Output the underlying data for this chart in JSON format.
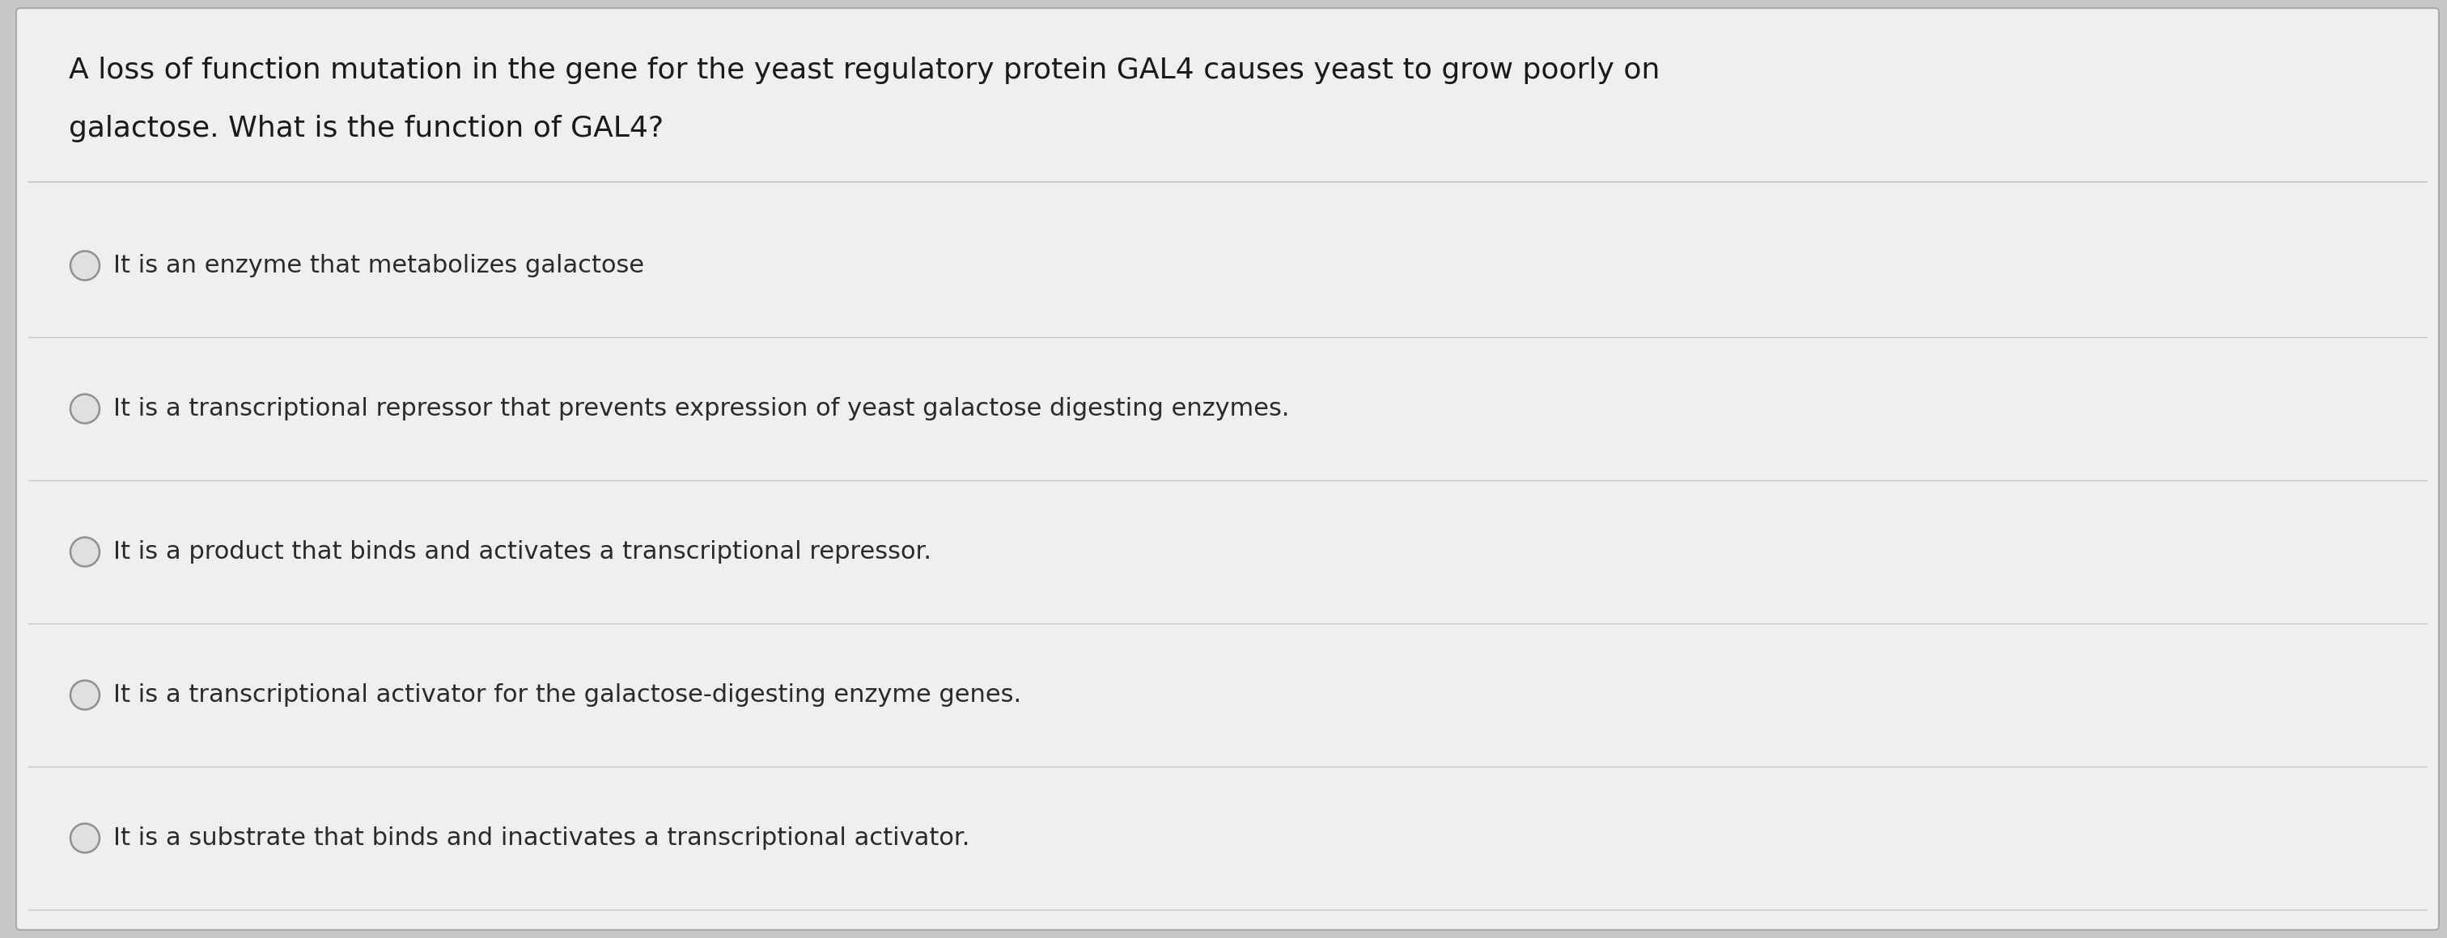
{
  "background_color": "#c8c8c8",
  "card_color": "#f0efee",
  "question_line1": "A loss of function mutation in the gene for the yeast regulatory protein GAL4 causes yeast to grow poorly on",
  "question_line2": "galactose. What is the function of GAL4?",
  "options": [
    "It is an enzyme that metabolizes galactose",
    "It is a transcriptional repressor that prevents expression of yeast galactose digesting enzymes.",
    "It is a product that binds and activates a transcriptional repressor.",
    "It is a transcriptional activator for the galactose-digesting enzyme genes.",
    "It is a substrate that binds and inactivates a transcriptional activator."
  ],
  "option_text_color": "#2a2a2a",
  "question_text_color": "#1a1a1a",
  "divider_color": "#c8c8c8",
  "circle_edge_color": "#909090",
  "circle_fill": "#e0e0e0",
  "title_fontsize": 26,
  "option_fontsize": 22,
  "fig_width": 30.24,
  "fig_height": 11.6
}
